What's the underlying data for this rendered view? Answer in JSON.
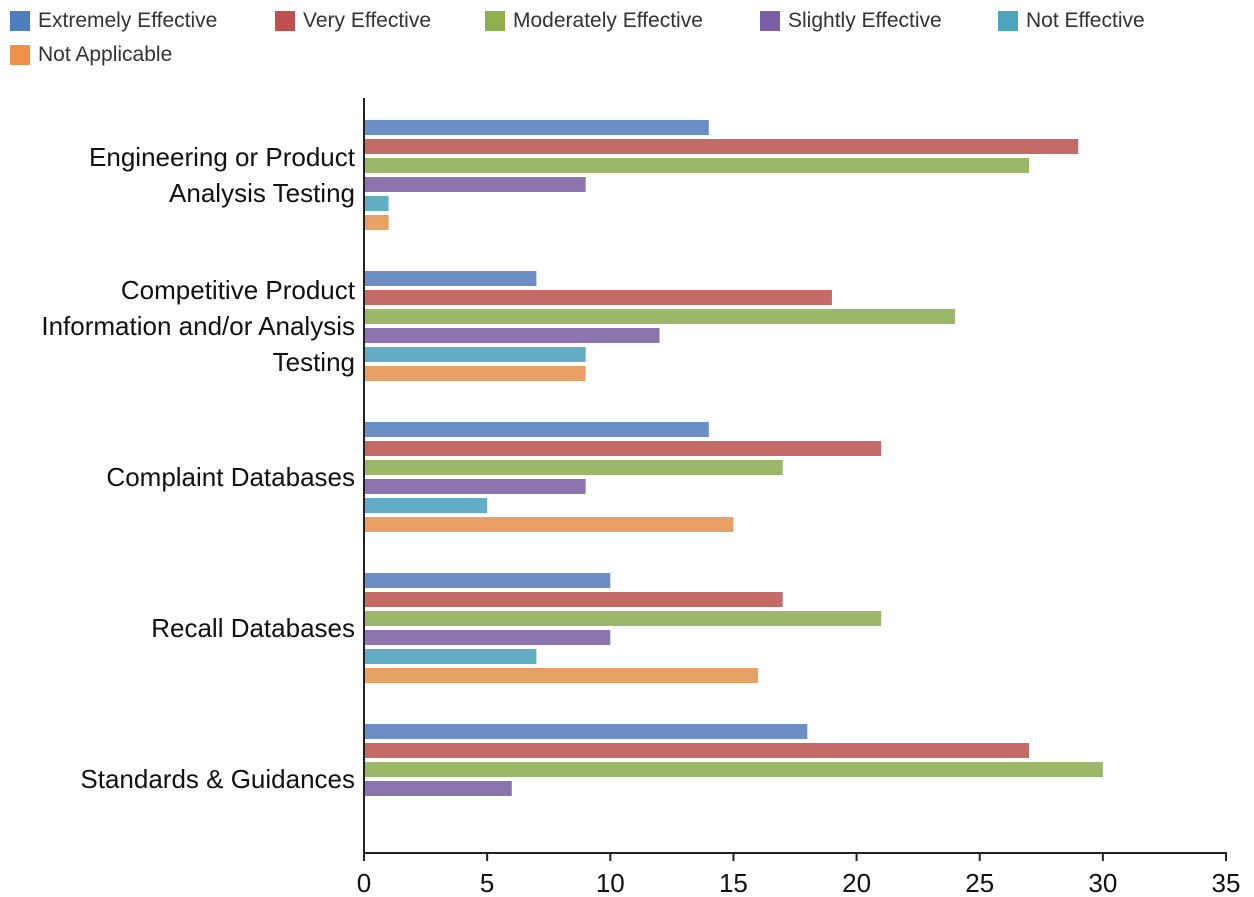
{
  "chart_data": {
    "type": "bar",
    "orientation": "horizontal",
    "title": "",
    "xlabel": "",
    "ylabel": "",
    "xlim": [
      0,
      35
    ],
    "x_ticks": [
      "0",
      "5",
      "10",
      "15",
      "20",
      "25",
      "30",
      "35"
    ],
    "grid": false,
    "legend_position": "top",
    "categories": [
      [
        "Engineering or Product",
        "Analysis Testing"
      ],
      [
        "Competitive Product",
        "Information and/or Analysis",
        "Testing"
      ],
      [
        "Complaint Databases"
      ],
      [
        "Recall Databases"
      ],
      [
        "Standards & Guidances"
      ]
    ],
    "series": [
      {
        "name": "Extremely Effective",
        "color": "#4f7dbd",
        "bar_color": "#6b8fc4",
        "values": [
          14,
          7,
          14,
          10,
          18
        ]
      },
      {
        "name": "Very Effective",
        "color": "#c0504d",
        "bar_color": "#c46b68",
        "values": [
          29,
          19,
          21,
          17,
          27
        ]
      },
      {
        "name": "Moderately Effective",
        "color": "#8fb04e",
        "bar_color": "#9bb86a",
        "values": [
          27,
          24,
          17,
          21,
          30
        ]
      },
      {
        "name": "Slightly Effective",
        "color": "#7a5ea6",
        "bar_color": "#8c75af",
        "values": [
          9,
          12,
          9,
          10,
          6
        ]
      },
      {
        "name": "Not Effective",
        "color": "#4aa6c0",
        "bar_color": "#63aec4",
        "values": [
          1,
          9,
          5,
          7,
          null
        ]
      },
      {
        "name": "Not Applicable",
        "color": "#f0914b",
        "bar_color": "#e9a065",
        "values": [
          1,
          9,
          15,
          16,
          null
        ]
      }
    ]
  }
}
